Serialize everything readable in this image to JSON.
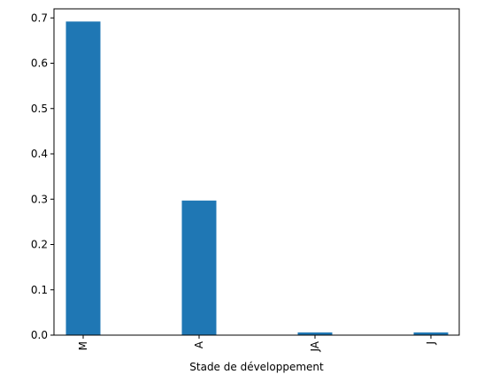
{
  "chart_data": {
    "type": "bar",
    "categories": [
      "M",
      "A",
      "JA",
      "J"
    ],
    "values": [
      0.692,
      0.297,
      0.006,
      0.006
    ],
    "xlabel": "Stade de développement",
    "ylabel": "",
    "ylim": [
      0,
      0.72
    ],
    "yticks": [
      "0.0",
      "0.1",
      "0.2",
      "0.3",
      "0.4",
      "0.5",
      "0.6",
      "0.7"
    ],
    "ytick_values": [
      0,
      0.1,
      0.2,
      0.3,
      0.4,
      0.5,
      0.6,
      0.7
    ],
    "bar_color": "#1f77b4",
    "grid": false,
    "legend": "none"
  }
}
